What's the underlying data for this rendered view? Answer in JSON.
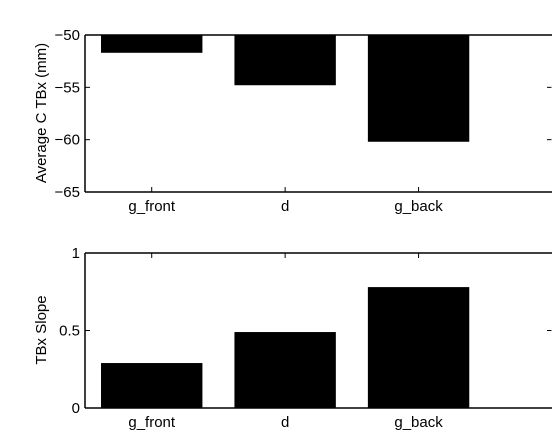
{
  "chart_data": [
    {
      "type": "bar",
      "title": "",
      "xlabel": "",
      "ylabel": "Average C TBx (mm)",
      "categories": [
        "g_front",
        "d",
        "g_back"
      ],
      "values": [
        -51.7,
        -54.8,
        -60.2
      ],
      "baseline": -50,
      "xlim": [
        0.5,
        4.0
      ],
      "ylim": [
        -65,
        -50
      ],
      "yticks": [
        "-50",
        "-55",
        "-60",
        "-65"
      ],
      "bar_color": "#000000",
      "grid": false
    },
    {
      "type": "bar",
      "title": "",
      "xlabel": "",
      "ylabel": "TBx Slope",
      "categories": [
        "g_front",
        "d",
        "g_back"
      ],
      "values": [
        0.29,
        0.49,
        0.78
      ],
      "baseline": 0,
      "xlim": [
        0.5,
        4.0
      ],
      "ylim": [
        0,
        1
      ],
      "yticks": [
        "0",
        "0.5",
        "1"
      ],
      "bar_color": "#000000",
      "grid": false
    }
  ]
}
